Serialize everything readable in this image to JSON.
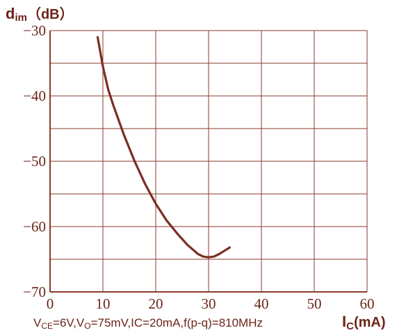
{
  "chart_data": {
    "type": "line",
    "title": "",
    "ylabel_main": "d",
    "ylabel_sub": "im",
    "ylabel_unit": "（dB）",
    "xlabel_main": "I",
    "xlabel_sub": "C",
    "xlabel_unit": "(mA)",
    "condition_parts": {
      "v1": "V",
      "v1_sub": "CE",
      "v1_rest": "=6V,V",
      "v2_sub": "O",
      "rest": "=75mV,IC=20mA,f(p-q)=810MHz"
    },
    "xlim": [
      0,
      60
    ],
    "ylim": [
      -70,
      -30
    ],
    "x_ticks": [
      "0",
      "10",
      "20",
      "30",
      "40",
      "50",
      "60"
    ],
    "y_ticks": [
      "−70",
      "−60",
      "−50",
      "−40",
      "−30"
    ],
    "grid": true,
    "colors": {
      "line": "#7a2e22",
      "grid": "#8a3a2c",
      "text": "#6b2418"
    },
    "series": [
      {
        "x": [
          9,
          10,
          11,
          12,
          14,
          16,
          18,
          20,
          22,
          24,
          26,
          28,
          29,
          30,
          31,
          32,
          33,
          34
        ],
        "y": [
          -31,
          -35.5,
          -39,
          -41.5,
          -46,
          -50,
          -53.5,
          -56.5,
          -59,
          -61,
          -62.8,
          -64.2,
          -64.6,
          -64.7,
          -64.6,
          -64.2,
          -63.7,
          -63.2
        ]
      }
    ]
  }
}
